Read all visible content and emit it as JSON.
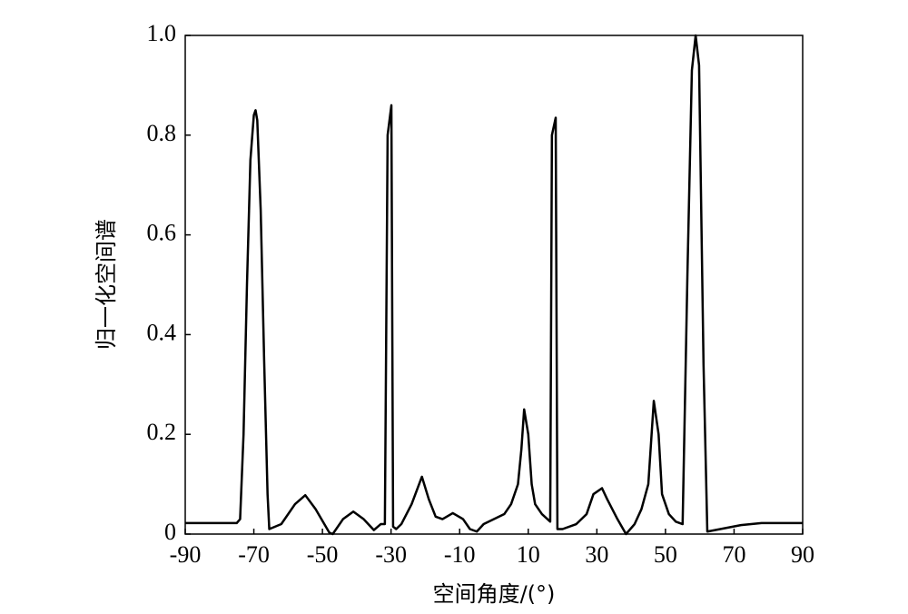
{
  "chart_data": {
    "type": "line",
    "xlabel": "空间角度/(°)",
    "ylabel": "归一化空间谱",
    "color": "#000000",
    "x": [
      -90,
      -75,
      -74,
      -73,
      -72,
      -71,
      -70,
      -69.5,
      -69,
      -68,
      -67,
      -66,
      -65.5,
      -62,
      -58,
      -55,
      -52,
      -48,
      -47,
      -44,
      -41,
      -38,
      -35,
      -33,
      -31.8,
      -31,
      -29.9,
      -29.4,
      -28.5,
      -27,
      -24,
      -21,
      -19,
      -17,
      -15,
      -12,
      -9,
      -7,
      -5,
      -3,
      0,
      3,
      5,
      7,
      8,
      8.8,
      10,
      11,
      12,
      14,
      16.4,
      16.9,
      18,
      18.5,
      20,
      24,
      27,
      29,
      31.5,
      33,
      36,
      38.5,
      41,
      43,
      45,
      46.6,
      48,
      49,
      51,
      53,
      55,
      56.4,
      57.7,
      58.8,
      59.8,
      61.1,
      62.2,
      66,
      72,
      78,
      90
    ],
    "values": [
      0.022,
      0.022,
      0.03,
      0.2,
      0.5,
      0.75,
      0.84,
      0.85,
      0.83,
      0.65,
      0.35,
      0.08,
      0.01,
      0.02,
      0.06,
      0.078,
      0.05,
      0.003,
      0,
      0.03,
      0.045,
      0.03,
      0.008,
      0.02,
      0.02,
      0.8,
      0.86,
      0.015,
      0.01,
      0.02,
      0.06,
      0.115,
      0.07,
      0.035,
      0.03,
      0.042,
      0.03,
      0.01,
      0.005,
      0.02,
      0.03,
      0.04,
      0.06,
      0.1,
      0.17,
      0.25,
      0.2,
      0.1,
      0.06,
      0.04,
      0.025,
      0.8,
      0.835,
      0.01,
      0.01,
      0.02,
      0.04,
      0.08,
      0.092,
      0.07,
      0.03,
      0,
      0.02,
      0.05,
      0.1,
      0.267,
      0.2,
      0.08,
      0.04,
      0.025,
      0.02,
      0.52,
      0.93,
      1.0,
      0.94,
      0.34,
      0.005,
      0.01,
      0.018,
      0.022,
      0.022
    ],
    "xlim": [
      -90,
      90
    ],
    "xticks": [
      -90,
      -70,
      -50,
      -30,
      -10,
      10,
      30,
      50,
      70,
      90
    ],
    "ylim": [
      0,
      1
    ],
    "yticks": [
      0,
      0.2,
      0.4,
      0.6,
      0.8,
      {
        "value": 1,
        "label": "1.0"
      }
    ],
    "grid": false
  }
}
